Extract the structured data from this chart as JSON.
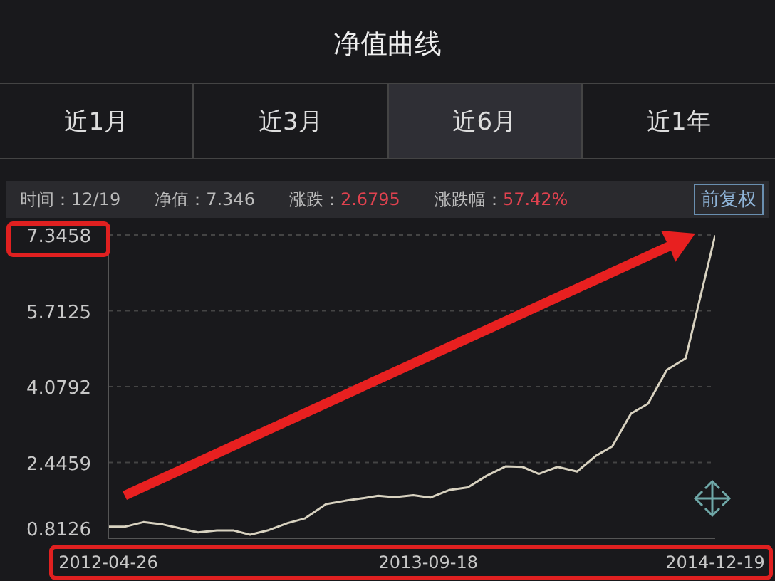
{
  "chart_data": {
    "type": "line",
    "title": "净值曲线",
    "annotations": [
      "近1月",
      "近3月",
      "近6月",
      "近1年",
      "时间：12/19",
      "净值：7.346",
      "涨跌：2.6795",
      "涨跌幅：57.42%",
      "前复权"
    ],
    "x": [
      "2012-04-26",
      "2012-05-22",
      "2012-06-21",
      "2012-07-22",
      "2012-08-17",
      "2012-09-16",
      "2012-10-16",
      "2012-11-12",
      "2012-12-08",
      "2013-01-07",
      "2013-02-06",
      "2013-03-05",
      "2013-04-08",
      "2013-05-08",
      "2013-06-03",
      "2013-06-30",
      "2013-07-26",
      "2013-08-25",
      "2013-09-21",
      "2013-10-21",
      "2013-11-20",
      "2013-12-20",
      "2014-01-19",
      "2014-02-15",
      "2014-03-13",
      "2014-04-12",
      "2014-05-13",
      "2014-06-12",
      "2014-07-08",
      "2014-08-07",
      "2014-09-03",
      "2014-10-03",
      "2014-11-02",
      "2014-12-19"
    ],
    "series": [
      {
        "color": "#d8d2c0",
        "values": [
          1.06,
          1.06,
          1.16,
          1.11,
          1.03,
          0.94,
          0.98,
          0.98,
          0.89,
          0.99,
          1.14,
          1.24,
          1.55,
          1.62,
          1.67,
          1.73,
          1.7,
          1.74,
          1.69,
          1.85,
          1.91,
          2.16,
          2.36,
          2.35,
          2.2,
          2.35,
          2.25,
          2.59,
          2.79,
          3.5,
          3.71,
          4.44,
          4.69,
          7.34
        ]
      }
    ],
    "xlim": [
      "2012-04-26",
      "2014-12-19"
    ],
    "xticks": [
      "2012-04-26",
      "2013-09-18",
      "2014-12-19"
    ],
    "ylim": [
      0.8126,
      7.3458
    ],
    "yticks": [
      0.8126,
      2.4459,
      4.0792,
      5.7125,
      7.3458
    ],
    "grid": "y",
    "marker": "none",
    "line_style": "solid",
    "legend": false
  }
}
